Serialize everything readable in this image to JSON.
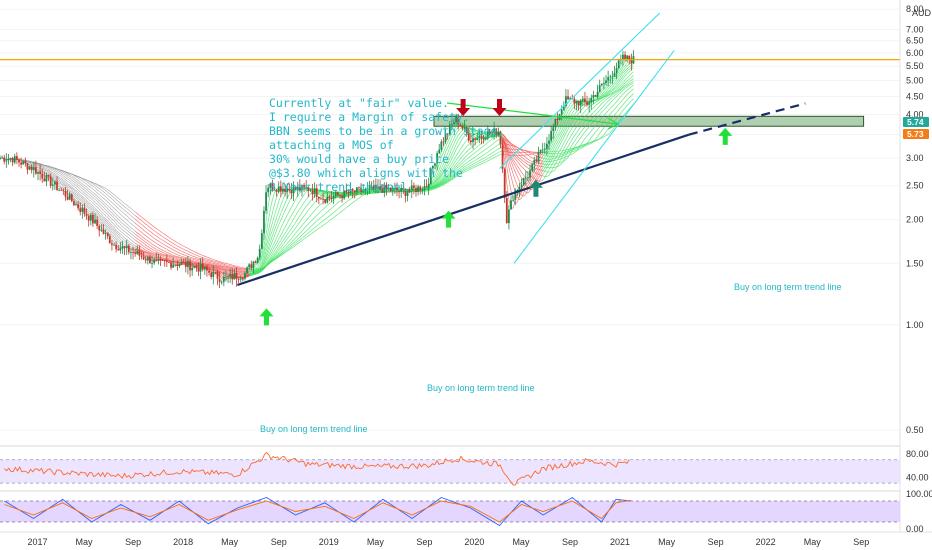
{
  "currency_label": "AUD",
  "colors": {
    "candle_up": "#1e8c4e",
    "candle_down": "#c0392b",
    "ribbon_green": "#33e05a",
    "ribbon_red": "#f04f4f",
    "ribbon_gray": "#9e9e9e",
    "trendline": "#1a2e66",
    "channel": "#40e0f0",
    "note": "#22b8c9",
    "arrow_green": "#22e03a",
    "arrow_red": "#c00018",
    "arrow_teal": "#1b8a72",
    "horizontal_line": "#f0a500",
    "resistance_fill": "#6fa86f",
    "rsi_line": "#ff6a2b",
    "rsi_band": "#e6d9ff",
    "stoch_k": "#2962ff",
    "stoch_d": "#ff6d00",
    "stoch_band": "#d8c4ff",
    "price_tag_teal": "#21a99a",
    "price_tag_orange": "#f47c16"
  },
  "annotations": {
    "note_lines": [
      "Currently at \"fair\" value.",
      "I require a Margin of safety.",
      "BBN seems to be in a growth stage,",
      "attaching a MOS of",
      "30% would have a buy price",
      "@$3.80 which aligns with the",
      "3 Year trend channel."
    ],
    "buy_label_1": "Buy on long term trend line",
    "buy_label_2": "Buy on long term trend line",
    "buy_label_3": "Buy on long term trend line"
  },
  "price_tags": {
    "current": "5.74",
    "level": "5.73"
  },
  "chart_data": [
    {
      "type": "candlestick",
      "title": "",
      "y_scale": "log",
      "ylim": [
        0.5,
        8.0
      ],
      "y_ticks": [
        "8.00",
        "7.00",
        "6.50",
        "6.00",
        "5.50",
        "5.00",
        "4.50",
        "4.00",
        "3.50",
        "3.00",
        "2.50",
        "2.00",
        "1.50",
        "1.00",
        "0.50"
      ],
      "x_ticks": [
        "2017",
        "May",
        "Sep",
        "2018",
        "May",
        "Sep",
        "2019",
        "May",
        "Sep",
        "2020",
        "May",
        "Sep",
        "2021",
        "May",
        "Sep",
        "2022",
        "May",
        "Sep"
      ],
      "series": [
        {
          "name": "close",
          "x": [
            2016.85,
            2017.0,
            2017.2,
            2017.4,
            2017.55,
            2017.7,
            2017.85,
            2018.0,
            2018.15,
            2018.3,
            2018.45,
            2018.55,
            2018.6,
            2018.75,
            2018.9,
            2019.0,
            2019.2,
            2019.4,
            2019.55,
            2019.7,
            2019.78,
            2019.85,
            2019.9,
            2020.0,
            2020.1,
            2020.2,
            2020.25,
            2020.3,
            2020.4,
            2020.55,
            2020.65,
            2020.8,
            2020.95,
            2021.05,
            2021.1
          ],
          "y": [
            3.0,
            2.8,
            2.4,
            2.0,
            1.7,
            1.6,
            1.5,
            1.5,
            1.45,
            1.35,
            1.4,
            1.6,
            2.5,
            2.45,
            2.45,
            2.3,
            2.4,
            2.45,
            2.4,
            2.5,
            3.2,
            3.6,
            3.9,
            3.4,
            3.5,
            3.6,
            2.0,
            2.4,
            2.7,
            3.5,
            4.4,
            4.3,
            5.1,
            5.8,
            5.74
          ]
        }
      ],
      "horizontal_level": 5.74,
      "resistance_zone": [
        3.7,
        3.95
      ],
      "trendline": [
        [
          2018.4,
          1.3
        ],
        [
          2021.5,
          3.5
        ]
      ],
      "trendline_projection": [
        [
          2021.5,
          3.5
        ],
        [
          2022.3,
          4.3
        ]
      ],
      "channel_upper": [
        [
          2020.2,
          2.8
        ],
        [
          2021.3,
          7.8
        ]
      ],
      "channel_lower": [
        [
          2020.3,
          1.5
        ],
        [
          2021.4,
          6.1
        ]
      ],
      "arrows": [
        {
          "x": 2018.6,
          "y": 1.05,
          "direction": "up",
          "color": "green"
        },
        {
          "x": 2019.85,
          "y": 2.0,
          "direction": "up",
          "color": "green"
        },
        {
          "x": 2019.95,
          "y": 4.2,
          "direction": "down",
          "color": "red"
        },
        {
          "x": 2020.2,
          "y": 4.2,
          "direction": "down",
          "color": "red"
        },
        {
          "x": 2020.45,
          "y": 2.45,
          "direction": "up",
          "color": "teal"
        },
        {
          "x": 2021.75,
          "y": 3.45,
          "direction": "up",
          "color": "green"
        }
      ]
    },
    {
      "type": "line",
      "title": "",
      "y_ticks": [
        "80.00",
        "40.00"
      ],
      "ylim": [
        20,
        90
      ],
      "series": [
        {
          "name": "",
          "x": [
            2016.8,
            2017.2,
            2017.6,
            2018.0,
            2018.4,
            2018.6,
            2018.9,
            2019.3,
            2019.7,
            2019.9,
            2020.2,
            2020.3,
            2020.5,
            2020.8,
            2021.0,
            2021.1
          ],
          "values": [
            55,
            48,
            42,
            50,
            45,
            78,
            62,
            58,
            60,
            72,
            62,
            28,
            55,
            68,
            62,
            66
          ]
        }
      ]
    },
    {
      "type": "line",
      "title": "",
      "y_ticks": [
        "100.00",
        "0.00"
      ],
      "ylim": [
        0,
        100
      ],
      "series": [
        {
          "name": "",
          "x": [
            2016.8,
            2017.0,
            2017.2,
            2017.4,
            2017.6,
            2017.8,
            2018.0,
            2018.2,
            2018.4,
            2018.6,
            2018.8,
            2019.0,
            2019.2,
            2019.4,
            2019.6,
            2019.8,
            2020.0,
            2020.2,
            2020.35,
            2020.5,
            2020.7,
            2020.9,
            2021.0,
            2021.1
          ],
          "values": [
            80,
            30,
            85,
            20,
            70,
            25,
            80,
            15,
            60,
            90,
            40,
            75,
            20,
            85,
            30,
            90,
            60,
            10,
            80,
            40,
            90,
            20,
            85,
            80
          ]
        },
        {
          "name": "",
          "x": [
            2016.8,
            2017.0,
            2017.2,
            2017.4,
            2017.6,
            2017.8,
            2018.0,
            2018.2,
            2018.4,
            2018.6,
            2018.8,
            2019.0,
            2019.2,
            2019.4,
            2019.6,
            2019.8,
            2020.0,
            2020.2,
            2020.35,
            2020.5,
            2020.7,
            2020.9,
            2021.0,
            2021.1
          ],
          "values": [
            70,
            40,
            75,
            30,
            60,
            35,
            70,
            25,
            55,
            80,
            50,
            65,
            30,
            75,
            40,
            80,
            65,
            20,
            70,
            50,
            80,
            30,
            75,
            82
          ]
        }
      ]
    }
  ]
}
